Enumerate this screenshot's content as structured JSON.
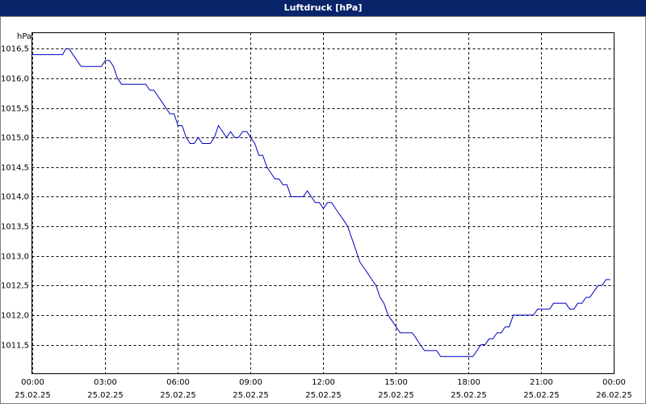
{
  "chart_data": {
    "type": "line",
    "title": "Luftdruck [hPa]",
    "y_unit": "hPa",
    "x": [
      0,
      1.27,
      1.4,
      1.53,
      2.03,
      2.87,
      3.03,
      3.2,
      3.37,
      3.53,
      3.7,
      4.7,
      4.87,
      5.03,
      5.2,
      5.37,
      5.53,
      5.7,
      5.87,
      6.03,
      6.2,
      6.37,
      6.53,
      6.7,
      6.87,
      7.03,
      7.37,
      7.53,
      7.7,
      7.87,
      8.03,
      8.2,
      8.37,
      8.53,
      8.7,
      8.87,
      9.03,
      9.2,
      9.37,
      9.53,
      9.7,
      9.87,
      10.03,
      10.2,
      10.37,
      10.53,
      10.7,
      11.2,
      11.37,
      11.53,
      11.7,
      11.87,
      12.03,
      12.2,
      12.37,
      12.53,
      12.7,
      12.87,
      13.03,
      13.2,
      13.37,
      13.53,
      13.7,
      13.87,
      14.03,
      14.2,
      14.37,
      14.53,
      14.7,
      14.87,
      15.03,
      15.2,
      15.7,
      15.87,
      16.03,
      16.2,
      16.7,
      16.87,
      18.2,
      18.37,
      18.53,
      18.7,
      18.87,
      19.03,
      19.2,
      19.37,
      19.53,
      19.7,
      19.87,
      20.7,
      20.87,
      21.37,
      21.53,
      22.03,
      22.2,
      22.37,
      22.53,
      22.7,
      22.87,
      23.03,
      23.2,
      23.37,
      23.53,
      23.7,
      23.87
    ],
    "series": [
      {
        "name": "Luftdruck",
        "color": "#0000c0",
        "values": [
          1016.4,
          1016.4,
          1016.5,
          1016.5,
          1016.2,
          1016.2,
          1016.3,
          1016.3,
          1016.2,
          1016.0,
          1015.9,
          1015.9,
          1015.8,
          1015.8,
          1015.7,
          1015.6,
          1015.5,
          1015.4,
          1015.4,
          1015.2,
          1015.2,
          1015.0,
          1014.9,
          1014.9,
          1015.0,
          1014.9,
          1014.9,
          1015.0,
          1015.2,
          1015.1,
          1015.0,
          1015.1,
          1015.0,
          1015.0,
          1015.1,
          1015.1,
          1015.0,
          1014.9,
          1014.7,
          1014.7,
          1014.5,
          1014.4,
          1014.3,
          1014.3,
          1014.2,
          1014.2,
          1014.0,
          1014.0,
          1014.1,
          1014.0,
          1013.9,
          1013.9,
          1013.8,
          1013.9,
          1013.9,
          1013.8,
          1013.7,
          1013.6,
          1013.5,
          1013.3,
          1013.1,
          1012.9,
          1012.8,
          1012.7,
          1012.6,
          1012.5,
          1012.3,
          1012.2,
          1012.0,
          1011.9,
          1011.8,
          1011.7,
          1011.7,
          1011.6,
          1011.5,
          1011.4,
          1011.4,
          1011.3,
          1011.3,
          1011.4,
          1011.5,
          1011.5,
          1011.6,
          1011.6,
          1011.7,
          1011.7,
          1011.8,
          1011.8,
          1012.0,
          1012.0,
          1012.1,
          1012.1,
          1012.2,
          1012.2,
          1012.1,
          1012.1,
          1012.2,
          1012.2,
          1012.3,
          1012.3,
          1012.4,
          1012.5,
          1012.5,
          1012.6,
          1012.6
        ]
      }
    ],
    "xlim": [
      0,
      24.03
    ],
    "xticks": [
      {
        "value": 0,
        "label": "00:00"
      },
      {
        "value": 3,
        "label": "03:00"
      },
      {
        "value": 6,
        "label": "06:00"
      },
      {
        "value": 9,
        "label": "09:00"
      },
      {
        "value": 12,
        "label": "12:00"
      },
      {
        "value": 15,
        "label": "15:00"
      },
      {
        "value": 18,
        "label": "18:00"
      },
      {
        "value": 21,
        "label": "21:00"
      },
      {
        "value": 24,
        "label": "00:00"
      }
    ],
    "xtick_dates": [
      "25.02.25",
      "25.02.25",
      "25.02.25",
      "25.02.25",
      "25.02.25",
      "25.02.25",
      "25.02.25",
      "25.02.25",
      "26.02.25"
    ],
    "ylim": [
      1011.01,
      1016.77
    ],
    "yticks": [
      {
        "value": 1011.5,
        "label": "1011,5"
      },
      {
        "value": 1012,
        "label": "1012,0"
      },
      {
        "value": 1012.5,
        "label": "1012,5"
      },
      {
        "value": 1013,
        "label": "1013,0"
      },
      {
        "value": 1013.5,
        "label": "1013,5"
      },
      {
        "value": 1014,
        "label": "1014,0"
      },
      {
        "value": 1014.5,
        "label": "1014,5"
      },
      {
        "value": 1015,
        "label": "1015,0"
      },
      {
        "value": 1015.5,
        "label": "1015,5"
      },
      {
        "value": 1016,
        "label": "1016,0"
      },
      {
        "value": 1016.5,
        "label": "1016,5"
      }
    ],
    "grid": true
  }
}
